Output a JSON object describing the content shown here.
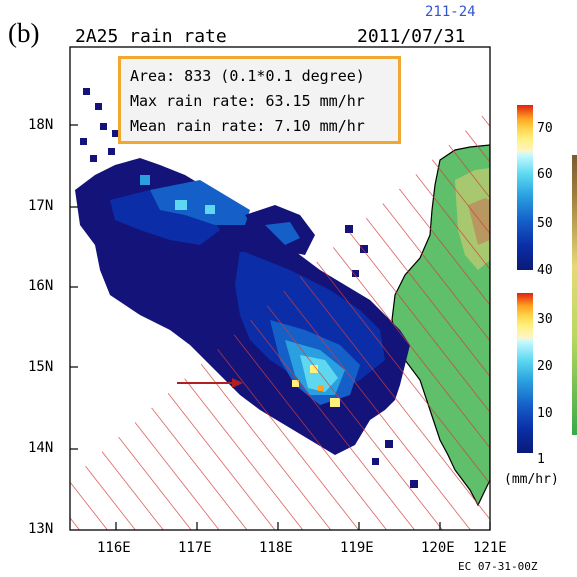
{
  "panel_label": "(b)",
  "title": "2A25 rain rate",
  "orbit": "211-24",
  "date": "2011/07/31",
  "footer": "EC 07-31-00Z",
  "info": {
    "area": "Area: 833 (0.1*0.1 degree)",
    "max": "Max rain rate: 63.15 mm/hr",
    "mean": "Mean rain rate: 7.10 mm/hr"
  },
  "axes": {
    "y_ticks": [
      "18N",
      "17N",
      "16N",
      "15N",
      "14N",
      "13N"
    ],
    "x_ticks": [
      "116E",
      "117E",
      "118E",
      "119E",
      "120E",
      "121E"
    ]
  },
  "colorbar": {
    "unit": "(mm/hr)",
    "upper_ticks": [
      "70",
      "60",
      "50",
      "40"
    ],
    "lower_ticks": [
      "30",
      "20",
      "10",
      "1"
    ],
    "colors": [
      "#1a1a7a",
      "#0b2ea8",
      "#1560c8",
      "#2aa0e0",
      "#5dd8f0",
      "#a8f4ff",
      "#fffbd0",
      "#fff07a",
      "#ffd24a",
      "#ffa020",
      "#f06010",
      "#e02010"
    ]
  },
  "map": {
    "rain_color_dark": "#13137a",
    "land_color": "#5fbf6a",
    "hatch_color": "#d23a3a",
    "arrow_color": "#b02020"
  }
}
